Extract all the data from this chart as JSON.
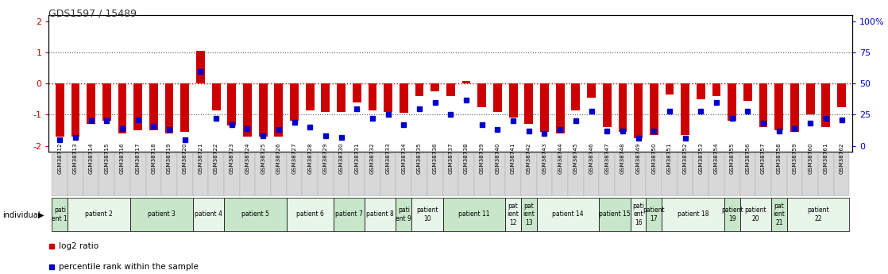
{
  "title": "GDS1597 / 15489",
  "samples": [
    "GSM38712",
    "GSM38713",
    "GSM38714",
    "GSM38715",
    "GSM38716",
    "GSM38717",
    "GSM38718",
    "GSM38719",
    "GSM38720",
    "GSM38721",
    "GSM38722",
    "GSM38723",
    "GSM38724",
    "GSM38725",
    "GSM38726",
    "GSM38727",
    "GSM38728",
    "GSM38729",
    "GSM38730",
    "GSM38731",
    "GSM38732",
    "GSM38733",
    "GSM38734",
    "GSM38735",
    "GSM38736",
    "GSM38737",
    "GSM38738",
    "GSM38739",
    "GSM38740",
    "GSM38741",
    "GSM38742",
    "GSM38743",
    "GSM38744",
    "GSM38745",
    "GSM38746",
    "GSM38747",
    "GSM38748",
    "GSM38749",
    "GSM38750",
    "GSM38751",
    "GSM38752",
    "GSM38753",
    "GSM38754",
    "GSM38755",
    "GSM38756",
    "GSM38757",
    "GSM38758",
    "GSM38759",
    "GSM38760",
    "GSM38761",
    "GSM38762"
  ],
  "log2_ratio": [
    -1.7,
    -1.7,
    -1.3,
    -1.2,
    -1.6,
    -1.5,
    -1.5,
    -1.6,
    -1.55,
    1.05,
    -0.85,
    -1.35,
    -1.7,
    -1.7,
    -1.7,
    -1.2,
    -0.85,
    -0.9,
    -0.9,
    -0.6,
    -0.85,
    -0.9,
    -0.95,
    -0.4,
    -0.25,
    -0.4,
    0.07,
    -0.75,
    -0.9,
    -1.1,
    -1.3,
    -1.55,
    -1.6,
    -0.85,
    -0.45,
    -1.4,
    -1.55,
    -1.75,
    -1.65,
    -0.35,
    -1.65,
    -0.5,
    -0.4,
    -1.2,
    -0.55,
    -1.4,
    -1.5,
    -1.55,
    -1.0,
    -1.4,
    -0.75
  ],
  "percentile": [
    5,
    7,
    20,
    20,
    14,
    21,
    16,
    13,
    5,
    60,
    22,
    17,
    14,
    8,
    13,
    19,
    15,
    8,
    7,
    30,
    22,
    25,
    17,
    30,
    35,
    25,
    37,
    17,
    13,
    20,
    12,
    10,
    13,
    20,
    28,
    12,
    12,
    6,
    12,
    28,
    6,
    28,
    35,
    22,
    28,
    18,
    12,
    14,
    18,
    22,
    21
  ],
  "patients": [
    {
      "label": "pati\nent 1",
      "start": 0,
      "end": 1,
      "color": "#c8e6c9"
    },
    {
      "label": "patient 2",
      "start": 1,
      "end": 5,
      "color": "#e8f5e9"
    },
    {
      "label": "patient 3",
      "start": 5,
      "end": 9,
      "color": "#c8e6c9"
    },
    {
      "label": "patient 4",
      "start": 9,
      "end": 11,
      "color": "#e8f5e9"
    },
    {
      "label": "patient 5",
      "start": 11,
      "end": 15,
      "color": "#c8e6c9"
    },
    {
      "label": "patient 6",
      "start": 15,
      "end": 18,
      "color": "#e8f5e9"
    },
    {
      "label": "patient 7",
      "start": 18,
      "end": 20,
      "color": "#c8e6c9"
    },
    {
      "label": "patient 8",
      "start": 20,
      "end": 22,
      "color": "#e8f5e9"
    },
    {
      "label": "pati\nent 9",
      "start": 22,
      "end": 23,
      "color": "#c8e6c9"
    },
    {
      "label": "patient\n10",
      "start": 23,
      "end": 25,
      "color": "#e8f5e9"
    },
    {
      "label": "patient 11",
      "start": 25,
      "end": 29,
      "color": "#c8e6c9"
    },
    {
      "label": "pat\nient\n12",
      "start": 29,
      "end": 30,
      "color": "#e8f5e9"
    },
    {
      "label": "pat\nient\n13",
      "start": 30,
      "end": 31,
      "color": "#c8e6c9"
    },
    {
      "label": "patient 14",
      "start": 31,
      "end": 35,
      "color": "#e8f5e9"
    },
    {
      "label": "patient 15",
      "start": 35,
      "end": 37,
      "color": "#c8e6c9"
    },
    {
      "label": "pati\nent\n16",
      "start": 37,
      "end": 38,
      "color": "#e8f5e9"
    },
    {
      "label": "patient\n17",
      "start": 38,
      "end": 39,
      "color": "#c8e6c9"
    },
    {
      "label": "patient 18",
      "start": 39,
      "end": 43,
      "color": "#e8f5e9"
    },
    {
      "label": "patient\n19",
      "start": 43,
      "end": 44,
      "color": "#c8e6c9"
    },
    {
      "label": "patient\n20",
      "start": 44,
      "end": 46,
      "color": "#e8f5e9"
    },
    {
      "label": "pat\nient\n21",
      "start": 46,
      "end": 47,
      "color": "#c8e6c9"
    },
    {
      "label": "patient\n22",
      "start": 47,
      "end": 51,
      "color": "#e8f5e9"
    }
  ],
  "ylim": [
    -2.2,
    2.2
  ],
  "yticks_left": [
    -2,
    -1,
    0,
    1,
    2
  ],
  "yticks_right": [
    0,
    25,
    50,
    75,
    100
  ],
  "bar_color": "#cc0000",
  "dot_color": "#0000cc",
  "title_color": "#333333",
  "right_axis_color": "#0000cc",
  "hline0_color": "#cc0000",
  "hline_color": "#555555",
  "xtick_bg": "#d8d8d8",
  "bg_color": "#ffffff"
}
